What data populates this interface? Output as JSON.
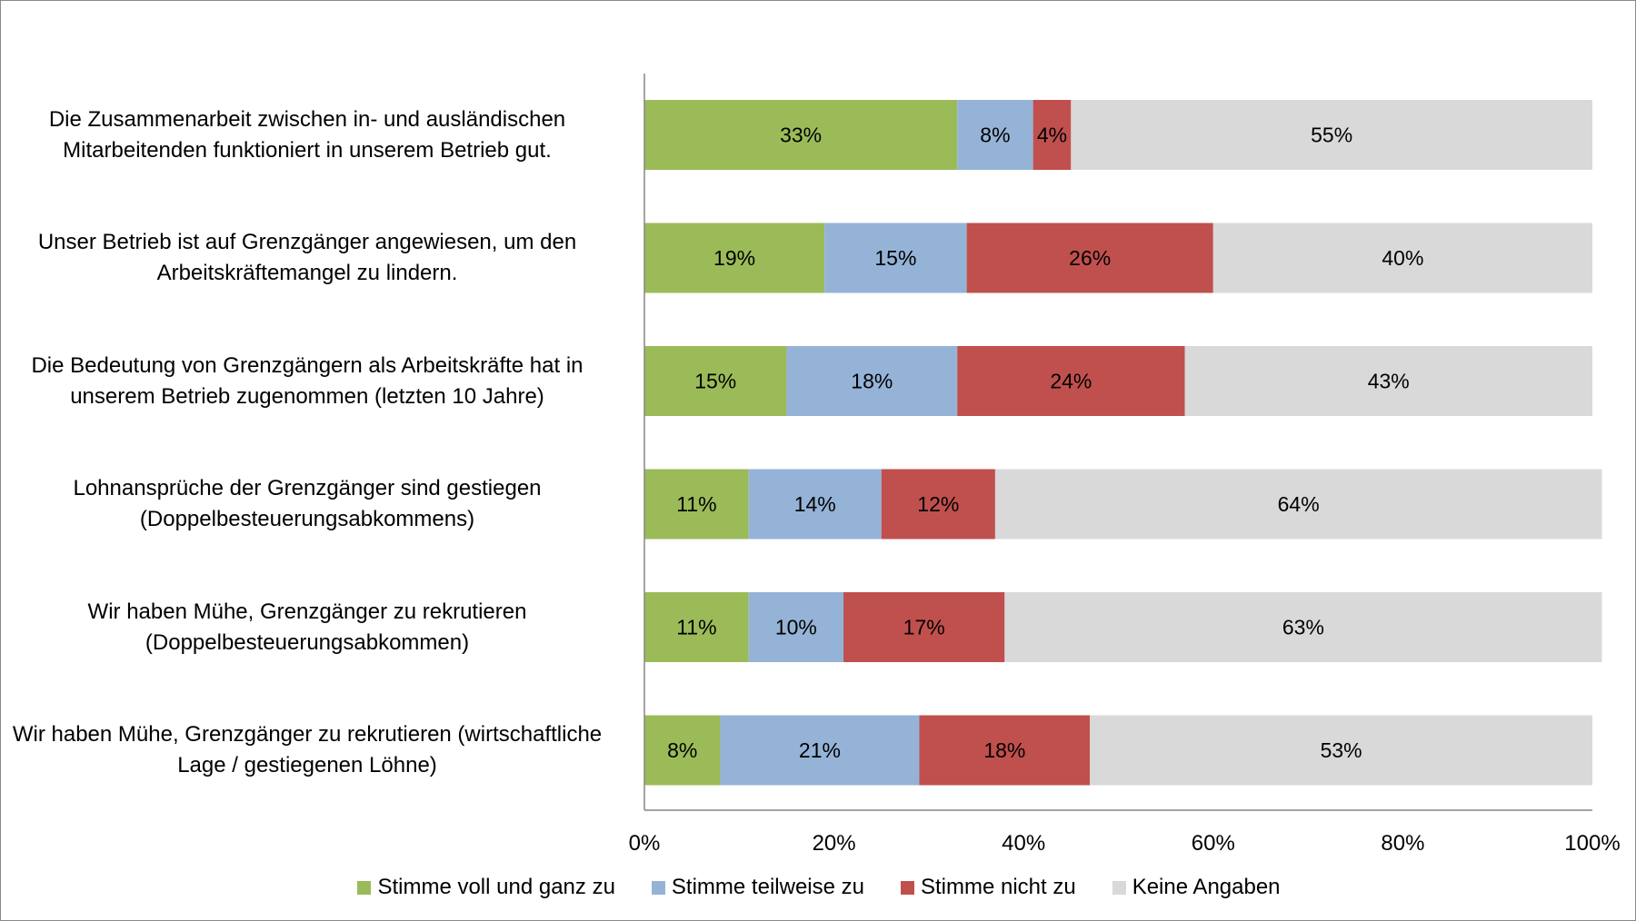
{
  "chart_data": {
    "type": "bar",
    "orientation": "horizontal",
    "stacked": true,
    "categories": [
      "Die Zusammenarbeit zwischen in- und ausländischen Mitarbeitenden funktioniert in unserem Betrieb gut.",
      "Unser Betrieb ist auf Grenzgänger angewiesen, um den Arbeitskräftemangel zu lindern.",
      "Die Bedeutung von Grenzgängern als Arbeitskräfte hat in unserem Betrieb zugenommen (letzten 10 Jahre)",
      "Lohnansprüche der Grenzgänger sind gestiegen (Doppelbesteuerungsabkommens)",
      "Wir haben Mühe, Grenzgänger zu rekrutieren (Doppelbesteuerungsabkommen)",
      "Wir haben Mühe, Grenzgänger zu rekrutieren (wirtschaftliche Lage / gestiegenen Löhne)"
    ],
    "series": [
      {
        "name": "Stimme voll und ganz zu",
        "color": "#9bbb59",
        "values": [
          33,
          19,
          15,
          11,
          11,
          8
        ]
      },
      {
        "name": "Stimme teilweise zu",
        "color": "#95b3d7",
        "values": [
          8,
          15,
          18,
          14,
          10,
          21
        ]
      },
      {
        "name": "Stimme nicht zu",
        "color": "#c0504d",
        "values": [
          4,
          26,
          24,
          12,
          17,
          18
        ]
      },
      {
        "name": "Keine Angaben",
        "color": "#d9d9d9",
        "values": [
          55,
          40,
          43,
          64,
          63,
          53
        ]
      }
    ],
    "xlim": [
      0,
      100
    ],
    "xticks": [
      "0%",
      "20%",
      "40%",
      "60%",
      "80%",
      "100%"
    ],
    "title": "",
    "xlabel": "",
    "ylabel": "",
    "grid": false,
    "legend_position": "bottom"
  }
}
